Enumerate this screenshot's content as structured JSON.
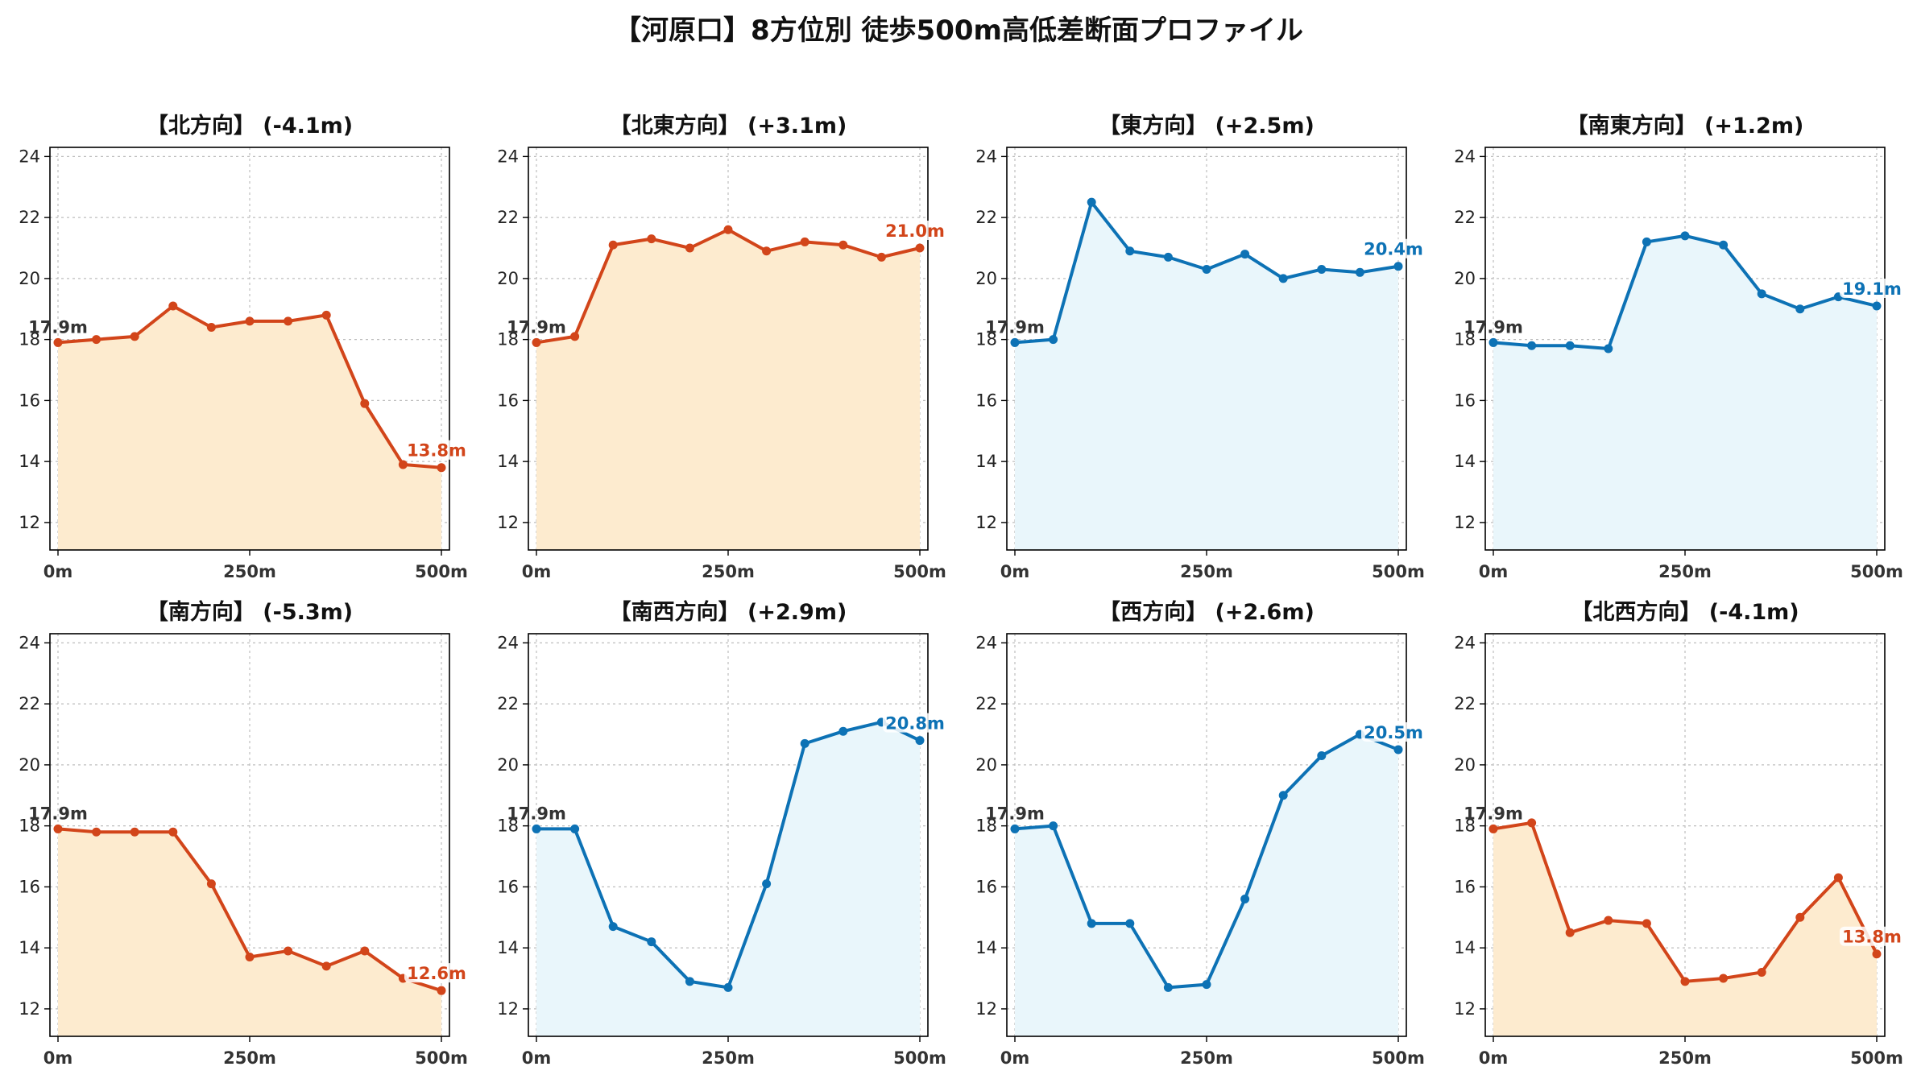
{
  "title": "【河原口】8方位別 徒歩500m高低差断面プロファイル",
  "colors": {
    "down_line": "#d2451a",
    "down_fill": "#fdebcf",
    "up_line": "#0d72b5",
    "up_fill": "#e9f6fb"
  },
  "chart_data": [
    {
      "type": "area",
      "title": "【北方向】 (-4.1m)",
      "trend": "down",
      "x": [
        0,
        50,
        100,
        150,
        200,
        250,
        300,
        350,
        400,
        450,
        500
      ],
      "values": [
        17.9,
        18.0,
        18.1,
        19.1,
        18.4,
        18.6,
        18.6,
        18.8,
        15.9,
        13.9,
        13.8
      ],
      "start_label": "17.9m",
      "end_label": "13.8m",
      "xticks": [
        "0m",
        "250m",
        "500m"
      ],
      "ylim": [
        11.1,
        24.3
      ],
      "yticks": [
        12,
        14,
        16,
        18,
        20,
        22,
        24
      ],
      "grid": true
    },
    {
      "type": "area",
      "title": "【北東方向】 (+3.1m)",
      "trend": "up_warm",
      "x": [
        0,
        50,
        100,
        150,
        200,
        250,
        300,
        350,
        400,
        450,
        500
      ],
      "values": [
        17.9,
        18.1,
        21.1,
        21.3,
        21.0,
        21.6,
        20.9,
        21.2,
        21.1,
        20.7,
        21.0
      ],
      "start_label": "17.9m",
      "end_label": "21.0m",
      "xticks": [
        "0m",
        "250m",
        "500m"
      ],
      "ylim": [
        11.1,
        24.3
      ],
      "yticks": [
        12,
        14,
        16,
        18,
        20,
        22,
        24
      ],
      "grid": true
    },
    {
      "type": "area",
      "title": "【東方向】 (+2.5m)",
      "trend": "up",
      "x": [
        0,
        50,
        100,
        150,
        200,
        250,
        300,
        350,
        400,
        450,
        500
      ],
      "values": [
        17.9,
        18.0,
        22.5,
        20.9,
        20.7,
        20.3,
        20.8,
        20.0,
        20.3,
        20.2,
        20.4
      ],
      "start_label": "17.9m",
      "end_label": "20.4m",
      "xticks": [
        "0m",
        "250m",
        "500m"
      ],
      "ylim": [
        11.1,
        24.3
      ],
      "yticks": [
        12,
        14,
        16,
        18,
        20,
        22,
        24
      ],
      "grid": true
    },
    {
      "type": "area",
      "title": "【南東方向】 (+1.2m)",
      "trend": "up",
      "x": [
        0,
        50,
        100,
        150,
        200,
        250,
        300,
        350,
        400,
        450,
        500
      ],
      "values": [
        17.9,
        17.8,
        17.8,
        17.7,
        21.2,
        21.4,
        21.1,
        19.5,
        19.0,
        19.4,
        19.1
      ],
      "start_label": "17.9m",
      "end_label": "19.1m",
      "xticks": [
        "0m",
        "250m",
        "500m"
      ],
      "ylim": [
        11.1,
        24.3
      ],
      "yticks": [
        12,
        14,
        16,
        18,
        20,
        22,
        24
      ],
      "grid": true
    },
    {
      "type": "area",
      "title": "【南方向】 (-5.3m)",
      "trend": "down",
      "x": [
        0,
        50,
        100,
        150,
        200,
        250,
        300,
        350,
        400,
        450,
        500
      ],
      "values": [
        17.9,
        17.8,
        17.8,
        17.8,
        16.1,
        13.7,
        13.9,
        13.4,
        13.9,
        13.0,
        12.6
      ],
      "start_label": "17.9m",
      "end_label": "12.6m",
      "xticks": [
        "0m",
        "250m",
        "500m"
      ],
      "ylim": [
        11.1,
        24.3
      ],
      "yticks": [
        12,
        14,
        16,
        18,
        20,
        22,
        24
      ],
      "grid": true
    },
    {
      "type": "area",
      "title": "【南西方向】 (+2.9m)",
      "trend": "up",
      "x": [
        0,
        50,
        100,
        150,
        200,
        250,
        300,
        350,
        400,
        450,
        500
      ],
      "values": [
        17.9,
        17.9,
        14.7,
        14.2,
        12.9,
        12.7,
        16.1,
        20.7,
        21.1,
        21.4,
        20.8
      ],
      "start_label": "17.9m",
      "end_label": "20.8m",
      "xticks": [
        "0m",
        "250m",
        "500m"
      ],
      "ylim": [
        11.1,
        24.3
      ],
      "yticks": [
        12,
        14,
        16,
        18,
        20,
        22,
        24
      ],
      "grid": true
    },
    {
      "type": "area",
      "title": "【西方向】 (+2.6m)",
      "trend": "up",
      "x": [
        0,
        50,
        100,
        150,
        200,
        250,
        300,
        350,
        400,
        450,
        500
      ],
      "values": [
        17.9,
        18.0,
        14.8,
        14.8,
        12.7,
        12.8,
        15.6,
        19.0,
        20.3,
        21.0,
        20.5
      ],
      "start_label": "17.9m",
      "end_label": "20.5m",
      "xticks": [
        "0m",
        "250m",
        "500m"
      ],
      "ylim": [
        11.1,
        24.3
      ],
      "yticks": [
        12,
        14,
        16,
        18,
        20,
        22,
        24
      ],
      "grid": true
    },
    {
      "type": "area",
      "title": "【北西方向】 (-4.1m)",
      "trend": "down",
      "x": [
        0,
        50,
        100,
        150,
        200,
        250,
        300,
        350,
        400,
        450,
        500
      ],
      "values": [
        17.9,
        18.1,
        14.5,
        14.9,
        14.8,
        12.9,
        13.0,
        13.2,
        15.0,
        16.3,
        13.8
      ],
      "start_label": "17.9m",
      "end_label": "13.8m",
      "xticks": [
        "0m",
        "250m",
        "500m"
      ],
      "ylim": [
        11.1,
        24.3
      ],
      "yticks": [
        12,
        14,
        16,
        18,
        20,
        22,
        24
      ],
      "grid": true
    }
  ]
}
